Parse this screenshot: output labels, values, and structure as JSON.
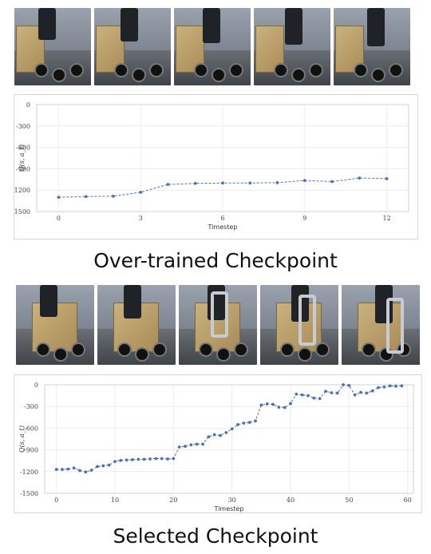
{
  "captions": {
    "top": "Over-trained Checkpoint",
    "bottom": "Selected Checkpoint"
  },
  "image_strips": {
    "top_frames": 5,
    "bottom_frames": 5
  },
  "chart_data": [
    {
      "type": "line",
      "xlabel": "Timestep",
      "ylabel": "Q(s, a_t)",
      "xlim": [
        -0.8,
        12.8
      ],
      "ylim": [
        -1500,
        0
      ],
      "xticks": [
        0,
        3,
        6,
        9,
        12
      ],
      "yticks": [
        0,
        -300,
        -600,
        -900,
        -1200,
        -1500
      ],
      "grid": true,
      "line_color": "#4c72b0",
      "x": [
        0,
        1,
        2,
        3,
        4,
        5,
        6,
        7,
        8,
        9,
        10,
        11,
        12
      ],
      "y": [
        -1300,
        -1290,
        -1285,
        -1230,
        -1120,
        -1105,
        -1100,
        -1100,
        -1095,
        -1065,
        -1080,
        -1030,
        -1040
      ]
    },
    {
      "type": "line",
      "xlabel": "Timestep",
      "ylabel": "Q(s, a_t)",
      "xlim": [
        -2,
        61
      ],
      "ylim": [
        -1500,
        0
      ],
      "xticks": [
        0,
        10,
        20,
        30,
        40,
        50,
        60
      ],
      "yticks": [
        0,
        -300,
        -600,
        -900,
        -1200,
        -1500
      ],
      "grid": true,
      "line_color": "#4c72b0",
      "x": [
        0,
        1,
        2,
        3,
        4,
        5,
        6,
        7,
        8,
        9,
        10,
        11,
        12,
        13,
        14,
        15,
        16,
        17,
        18,
        19,
        20,
        21,
        22,
        23,
        24,
        25,
        26,
        27,
        28,
        29,
        30,
        31,
        32,
        33,
        34,
        35,
        36,
        37,
        38,
        39,
        40,
        41,
        42,
        43,
        44,
        45,
        46,
        47,
        48,
        49,
        50,
        51,
        52,
        53,
        54,
        55,
        56,
        57,
        58,
        59
      ],
      "y": [
        -1170,
        -1170,
        -1165,
        -1150,
        -1185,
        -1205,
        -1180,
        -1130,
        -1120,
        -1110,
        -1060,
        -1045,
        -1040,
        -1035,
        -1030,
        -1030,
        -1025,
        -1020,
        -1020,
        -1025,
        -1020,
        -860,
        -850,
        -830,
        -820,
        -820,
        -720,
        -690,
        -700,
        -660,
        -610,
        -550,
        -530,
        -520,
        -500,
        -280,
        -265,
        -270,
        -310,
        -315,
        -260,
        -130,
        -140,
        -150,
        -185,
        -190,
        -90,
        -110,
        -115,
        0,
        -10,
        -140,
        -105,
        -115,
        -85,
        -40,
        -30,
        -15,
        -20,
        -15
      ]
    }
  ]
}
